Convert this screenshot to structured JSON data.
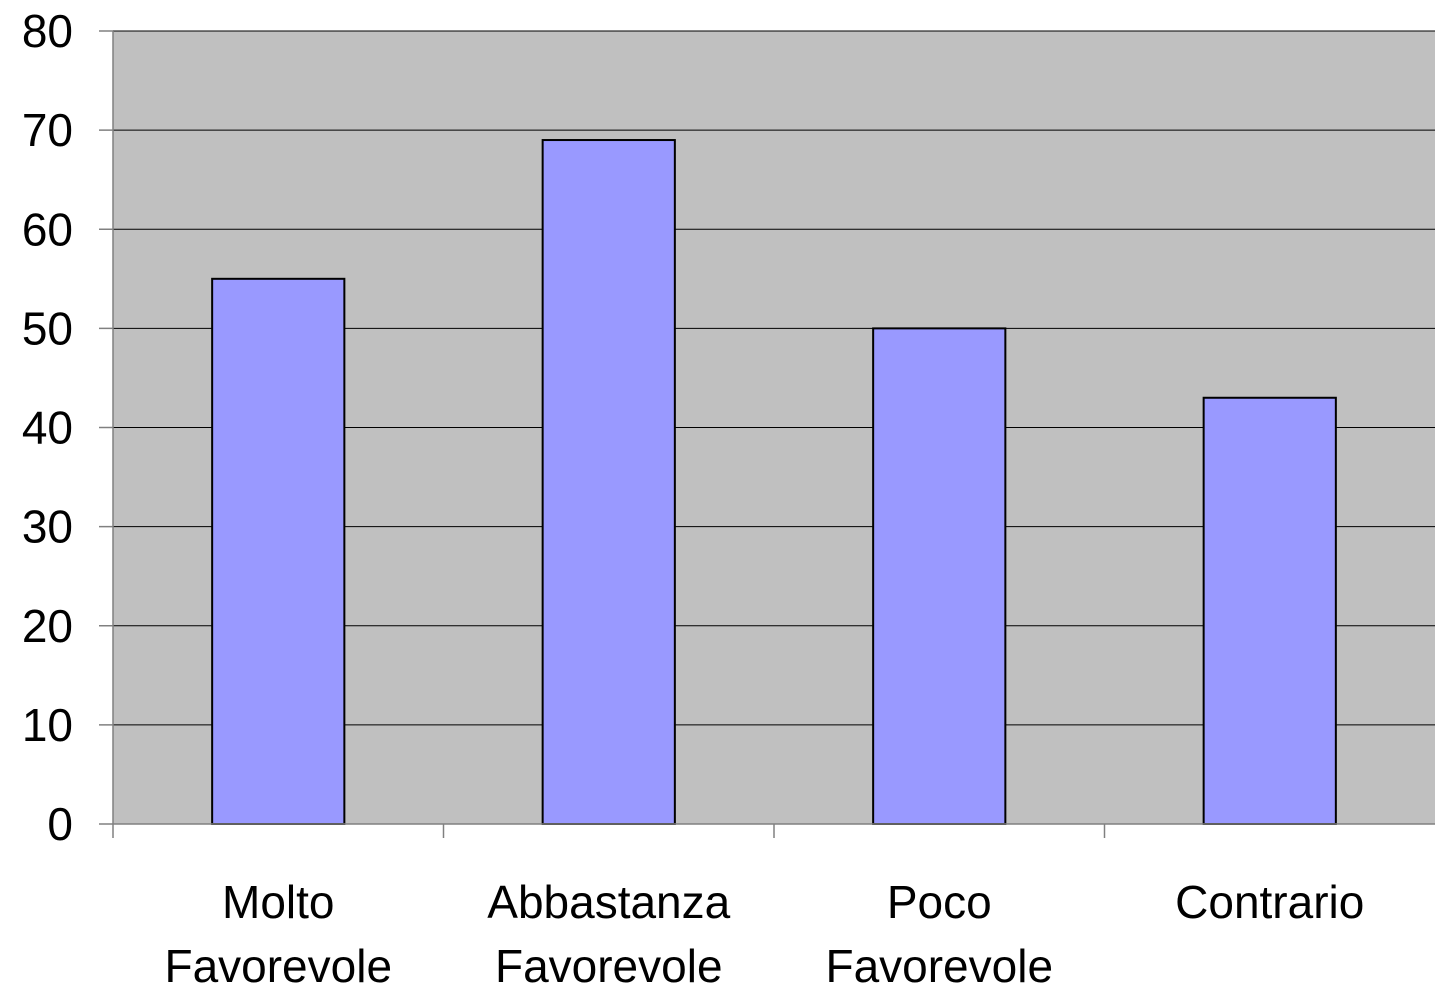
{
  "chart_data": {
    "type": "bar",
    "categories": [
      [
        "Molto",
        "Favorevole"
      ],
      [
        "Abbastanza",
        "Favorevole"
      ],
      [
        "Poco",
        "Favorevole"
      ],
      [
        "Contrario"
      ]
    ],
    "values": [
      55,
      69,
      50,
      43
    ],
    "ylim": [
      0,
      80
    ],
    "yticks": [
      "0",
      "10",
      "20",
      "30",
      "40",
      "50",
      "60",
      "70",
      "80"
    ],
    "grid": true,
    "legend": "none",
    "colors": {
      "plot_background": "#c0c0c0",
      "bar_fill": "#9999ff",
      "bar_stroke": "#000000",
      "gridline": "#000000",
      "axis": "#808080"
    }
  }
}
